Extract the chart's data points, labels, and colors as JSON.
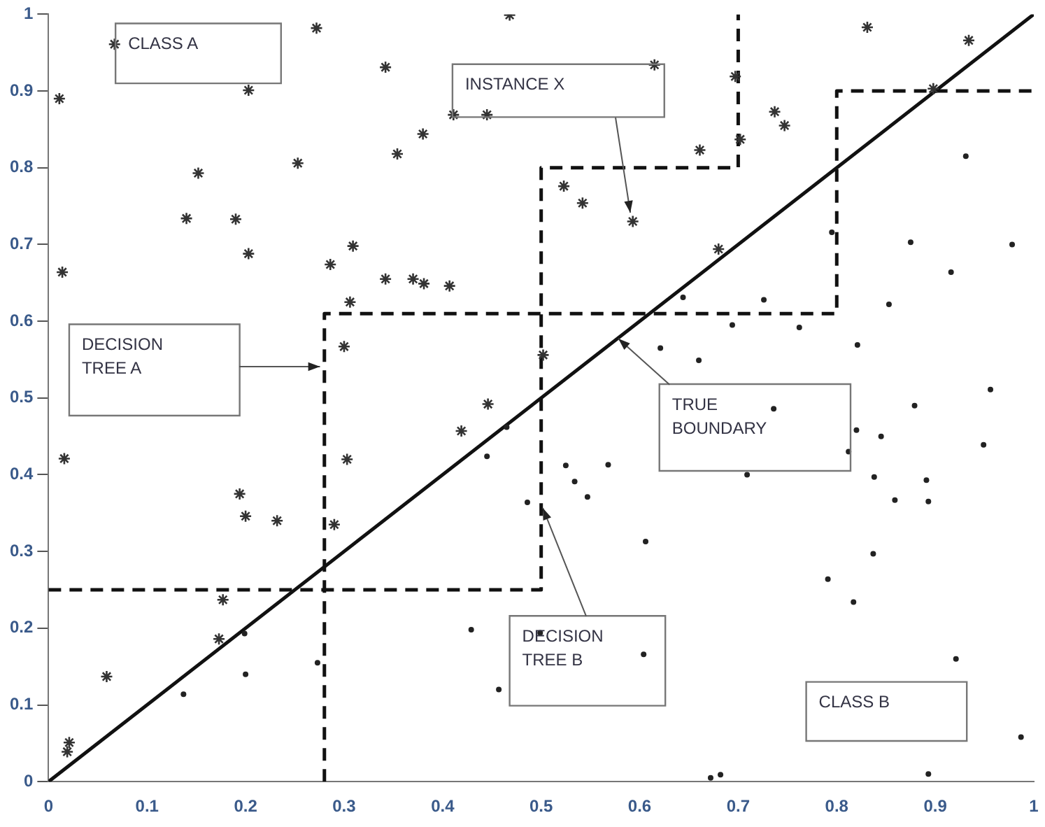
{
  "chart_data": {
    "type": "scatter",
    "xlim": [
      0,
      1
    ],
    "ylim": [
      0,
      1
    ],
    "xticks": [
      0,
      0.1,
      0.2,
      0.3,
      0.4,
      0.5,
      0.6,
      0.7,
      0.8,
      0.9,
      1
    ],
    "yticks": [
      0,
      0.1,
      0.2,
      0.3,
      0.4,
      0.5,
      0.6,
      0.7,
      0.8,
      0.9,
      1
    ],
    "grid": false,
    "legend": false,
    "series": [
      {
        "marker": "cross",
        "color": "#333333",
        "x": [
          0.067,
          0.011,
          0.014,
          0.272,
          0.203,
          0.342,
          0.468,
          0.411,
          0.445,
          0.38,
          0.354,
          0.253,
          0.152,
          0.14,
          0.19,
          0.203,
          0.309,
          0.286,
          0.342,
          0.37,
          0.381,
          0.407,
          0.306,
          0.3,
          0.446,
          0.615,
          0.697,
          0.831,
          0.934,
          0.898,
          0.737,
          0.747,
          0.702,
          0.661,
          0.523,
          0.542,
          0.593,
          0.68,
          0.502,
          0.016,
          0.194,
          0.2,
          0.232,
          0.29,
          0.303,
          0.419,
          0.177,
          0.173,
          0.059,
          0.021,
          0.019
        ],
        "values": [
          0.961,
          0.89,
          0.664,
          0.982,
          0.901,
          0.931,
          0.999,
          0.869,
          0.869,
          0.844,
          0.818,
          0.806,
          0.793,
          0.734,
          0.733,
          0.688,
          0.698,
          0.674,
          0.655,
          0.655,
          0.649,
          0.646,
          0.625,
          0.567,
          0.492,
          0.934,
          0.919,
          0.983,
          0.966,
          0.903,
          0.873,
          0.855,
          0.837,
          0.823,
          0.776,
          0.754,
          0.73,
          0.694,
          0.556,
          0.421,
          0.375,
          0.346,
          0.34,
          0.335,
          0.42,
          0.457,
          0.237,
          0.186,
          0.137,
          0.051,
          0.039
        ]
      },
      {
        "marker": "circle",
        "color": "#222222",
        "x": [
          0.931,
          0.795,
          0.875,
          0.978,
          0.916,
          0.644,
          0.726,
          0.853,
          0.694,
          0.762,
          0.821,
          0.621,
          0.66,
          0.956,
          0.879,
          0.736,
          0.445,
          0.199,
          0.2,
          0.137,
          0.273,
          0.429,
          0.457,
          0.465,
          0.525,
          0.568,
          0.534,
          0.547,
          0.486,
          0.606,
          0.709,
          0.82,
          0.812,
          0.845,
          0.949,
          0.838,
          0.891,
          0.859,
          0.893,
          0.837,
          0.791,
          0.817,
          0.604,
          0.921,
          0.987,
          0.672,
          0.682,
          0.893,
          0.499
        ],
        "values": [
          0.815,
          0.716,
          0.703,
          0.7,
          0.664,
          0.631,
          0.628,
          0.622,
          0.595,
          0.592,
          0.569,
          0.565,
          0.549,
          0.511,
          0.49,
          0.486,
          0.424,
          0.193,
          0.14,
          0.114,
          0.155,
          0.198,
          0.12,
          0.462,
          0.412,
          0.413,
          0.391,
          0.371,
          0.364,
          0.313,
          0.4,
          0.458,
          0.43,
          0.45,
          0.439,
          0.397,
          0.393,
          0.367,
          0.365,
          0.297,
          0.264,
          0.234,
          0.166,
          0.16,
          0.058,
          0.005,
          0.009,
          0.01,
          0.194
        ]
      },
      {
        "type": "line",
        "marker": "none",
        "line_style": "solid",
        "color": "#111111",
        "x": [
          0,
          1
        ],
        "values": [
          0,
          1
        ]
      },
      {
        "type": "line",
        "marker": "none",
        "line_style": "dashed",
        "color": "#111111",
        "x": [
          0.28,
          0.28,
          0.8,
          0.8,
          1
        ],
        "values": [
          0,
          0.61,
          0.61,
          0.9,
          0.9
        ]
      },
      {
        "type": "line",
        "marker": "none",
        "line_style": "dashed",
        "color": "#111111",
        "x": [
          0,
          0.5,
          0.5,
          0.7,
          0.7
        ],
        "values": [
          0.25,
          0.25,
          0.8,
          0.8,
          1
        ]
      }
    ],
    "annotations": [
      "CLASS A",
      "INSTANCE X",
      "DECISION TREE A",
      {
        "text": "TRUE BOUNDARY",
        "x": 0.578,
        "y": 0.578
      },
      {
        "text": "DECISION TREE B",
        "x": 0.501,
        "y": 0.357
      },
      "CLASS B"
    ]
  }
}
